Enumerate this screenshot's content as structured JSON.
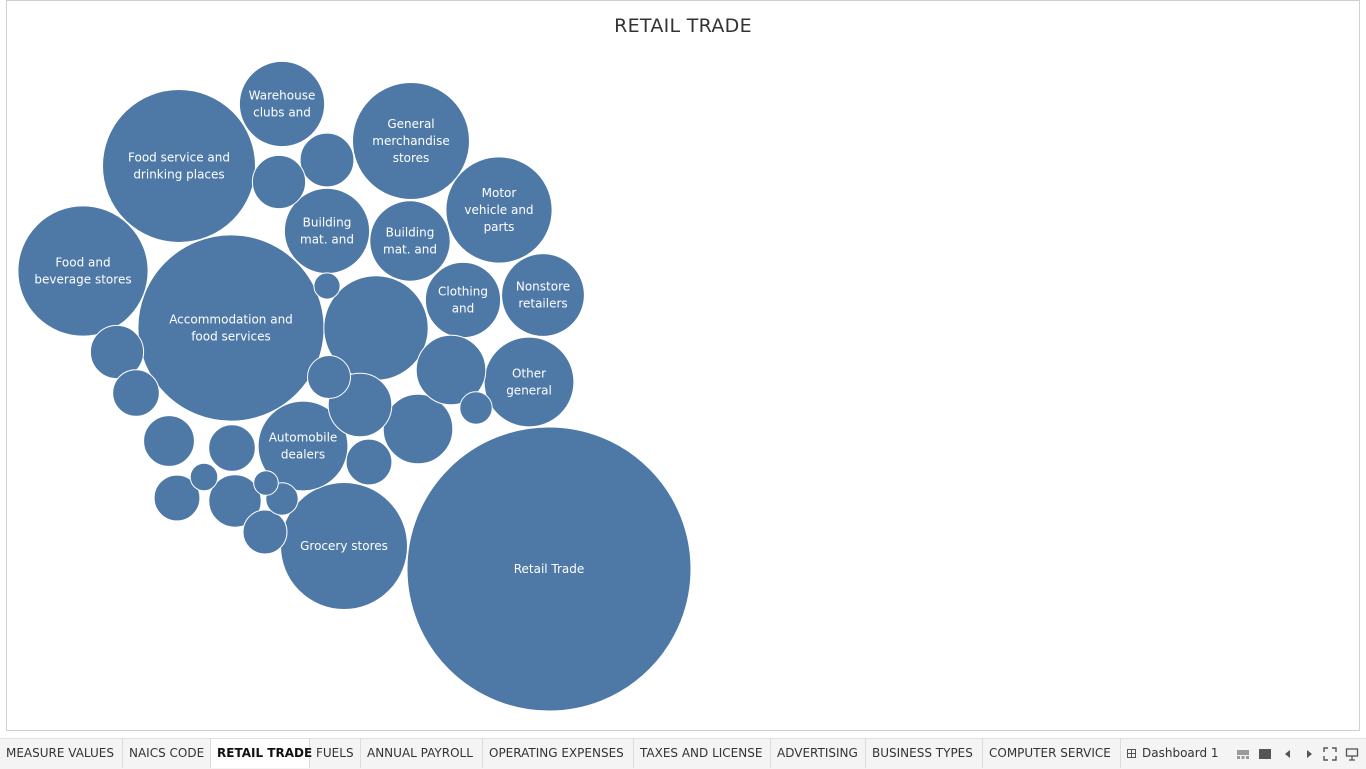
{
  "title": "RETAIL TRADE",
  "chart_data": {
    "type": "bubble",
    "color": "#4e79a7",
    "bubbles": [
      {
        "label": "Retail Trade",
        "size": 100
      },
      {
        "label": "Accommodation and food services",
        "size": 43
      },
      {
        "label": "Food service and drinking places",
        "size": 29
      },
      {
        "label": "Food and beverage stores",
        "size": 21
      },
      {
        "label": "Grocery stores",
        "size": 20
      },
      {
        "label": "General merchandise stores",
        "size": 17
      },
      {
        "label": "Motor vehicle and parts",
        "size": 14
      },
      {
        "label": "Automobile dealers",
        "size": 10
      },
      {
        "label": "Other general",
        "size": 10
      },
      {
        "label": "Building mat. and",
        "size": 9
      },
      {
        "label": "Building mat. and",
        "size": 8
      },
      {
        "label": "Warehouse clubs and",
        "size": 9
      },
      {
        "label": "Nonstore retailers",
        "size": 8.5
      },
      {
        "label": "Clothing and",
        "size": 7
      },
      {
        "label": "",
        "size": 13.5
      },
      {
        "label": "",
        "size": 6
      },
      {
        "label": "",
        "size": 6
      },
      {
        "label": "",
        "size": 5
      },
      {
        "label": "",
        "size": 3.6
      },
      {
        "label": "",
        "size": 3.5
      },
      {
        "label": "",
        "size": 3.2
      },
      {
        "label": "",
        "size": 3.4
      },
      {
        "label": "",
        "size": 3.5
      },
      {
        "label": "",
        "size": 2.7
      },
      {
        "label": "",
        "size": 2.7
      },
      {
        "label": "",
        "size": 2.6
      },
      {
        "label": "",
        "size": 2.6
      },
      {
        "label": "",
        "size": 2.4
      },
      {
        "label": "",
        "size": 2.3
      },
      {
        "label": "",
        "size": 1.3
      },
      {
        "label": "",
        "size": 1.3
      },
      {
        "label": "",
        "size": 0.95
      },
      {
        "label": "",
        "size": 0.85
      },
      {
        "label": "",
        "size": 0.75
      },
      {
        "label": "",
        "size": 0.36
      }
    ]
  },
  "tabs": [
    {
      "label": "MEASURE VALUES",
      "active": false
    },
    {
      "label": "NAICS CODE",
      "active": false
    },
    {
      "label": "RETAIL TRADE",
      "active": true
    },
    {
      "label": "FUELS",
      "active": false
    },
    {
      "label": "ANNUAL PAYROLL",
      "active": false
    },
    {
      "label": "OPERATING EXPENSES",
      "active": false
    },
    {
      "label": "TAXES AND LICENSE",
      "active": false
    },
    {
      "label": "ADVERTISING",
      "active": false
    },
    {
      "label": "BUSINESS TYPES",
      "active": false
    },
    {
      "label": "COMPUTER SERVICE",
      "active": false
    },
    {
      "label": "Dashboard 1",
      "active": false,
      "icon": "dashboard-grid-icon"
    }
  ],
  "controls": [
    "show-filmstrip-icon",
    "show-tabs-icon",
    "previous-sheet-icon",
    "next-sheet-icon",
    "fullscreen-icon",
    "presentation-mode-icon"
  ]
}
